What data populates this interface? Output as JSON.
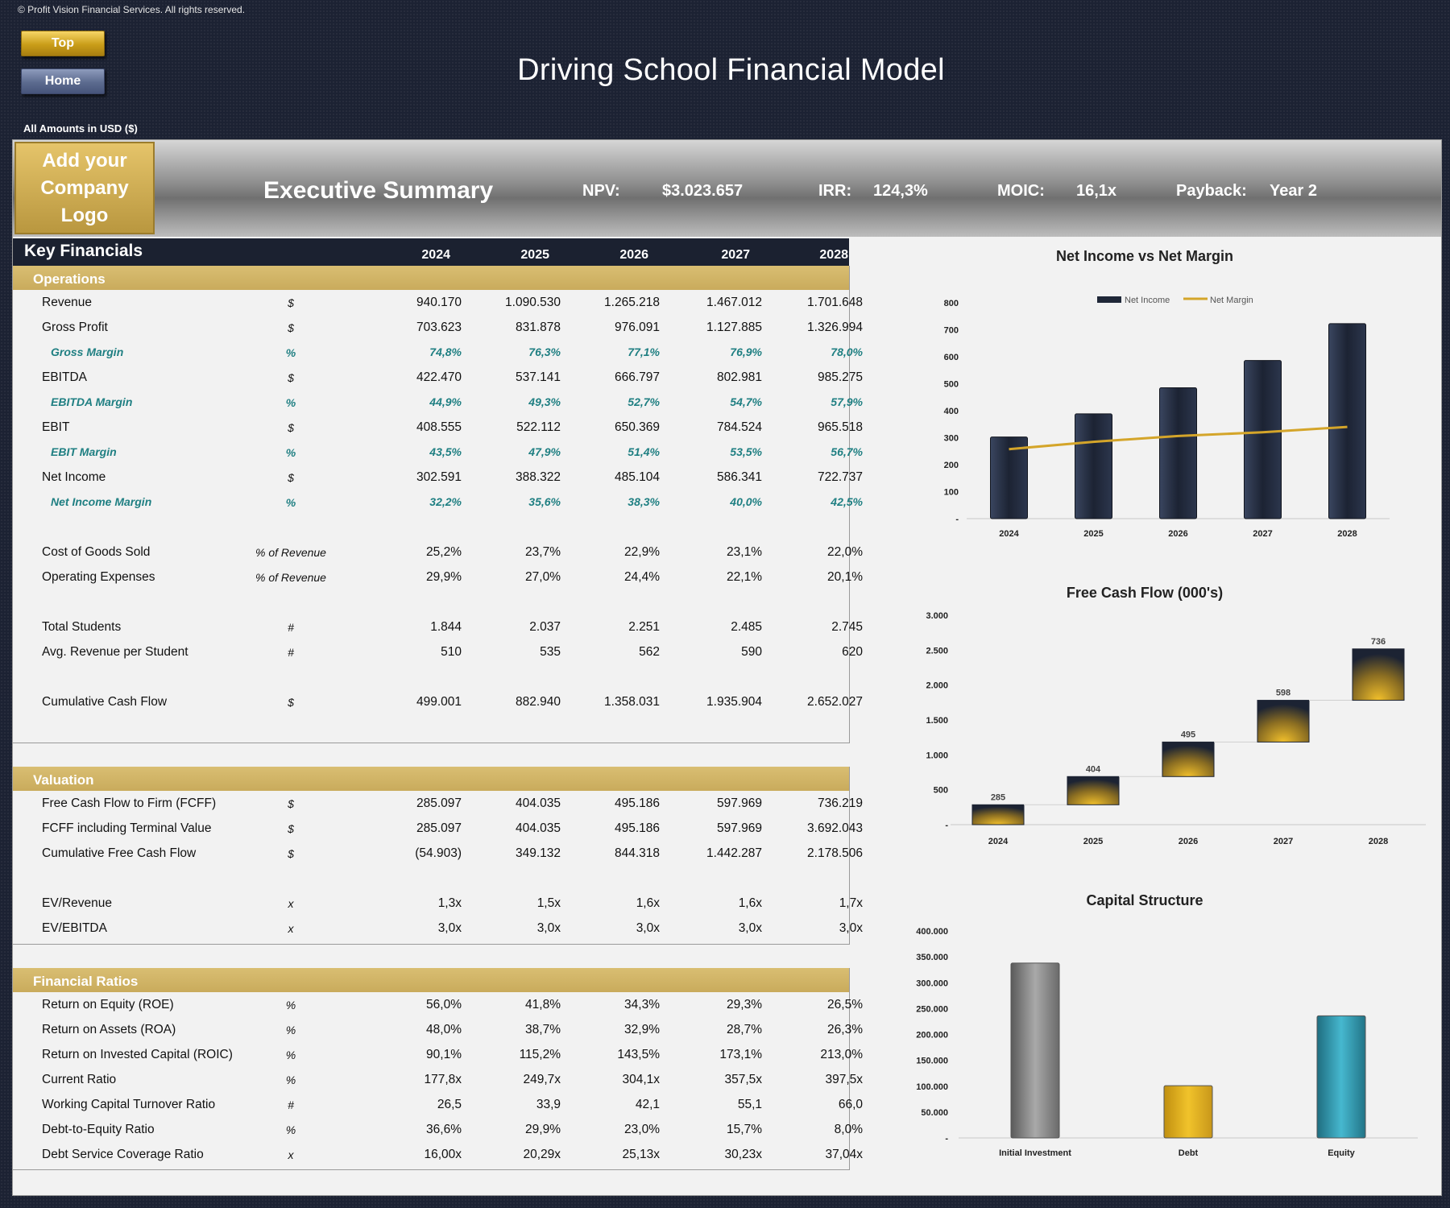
{
  "header": {
    "copyright": "© Profit Vision Financial Services. All rights reserved.",
    "btn_top": "Top",
    "btn_home": "Home",
    "title": "Driving School Financial Model",
    "amounts": "All Amounts in  USD ($)"
  },
  "banner": {
    "logo_line1": "Add your",
    "logo_line2": "Company Logo",
    "title": "Executive Summary",
    "npv_label": "NPV:",
    "npv_value": "$3.023.657",
    "irr_label": "IRR:",
    "irr_value": "124,3%",
    "moic_label": "MOIC:",
    "moic_value": "16,1x",
    "payback_label": "Payback:",
    "payback_value": "Year 2"
  },
  "table": {
    "title": "Key Financials",
    "years": [
      "2024",
      "2025",
      "2026",
      "2027",
      "2028"
    ],
    "sections": {
      "operations": "Operations",
      "valuation": "Valuation",
      "ratios": "Financial Ratios"
    },
    "operations": [
      {
        "label": "Revenue",
        "unit": "$",
        "values": [
          "940.170",
          "1.090.530",
          "1.265.218",
          "1.467.012",
          "1.701.648"
        ]
      },
      {
        "label": "Gross Profit",
        "unit": "$",
        "values": [
          "703.623",
          "831.878",
          "976.091",
          "1.127.885",
          "1.326.994"
        ]
      },
      {
        "label": "Gross Margin",
        "unit": "%",
        "values": [
          "74,8%",
          "76,3%",
          "77,1%",
          "76,9%",
          "78,0%"
        ],
        "sub": true
      },
      {
        "label": "EBITDA",
        "unit": "$",
        "values": [
          "422.470",
          "537.141",
          "666.797",
          "802.981",
          "985.275"
        ]
      },
      {
        "label": "EBITDA Margin",
        "unit": "%",
        "values": [
          "44,9%",
          "49,3%",
          "52,7%",
          "54,7%",
          "57,9%"
        ],
        "sub": true
      },
      {
        "label": "EBIT",
        "unit": "$",
        "values": [
          "408.555",
          "522.112",
          "650.369",
          "784.524",
          "965.518"
        ]
      },
      {
        "label": "EBIT Margin",
        "unit": "%",
        "values": [
          "43,5%",
          "47,9%",
          "51,4%",
          "53,5%",
          "56,7%"
        ],
        "sub": true
      },
      {
        "label": "Net Income",
        "unit": "$",
        "values": [
          "302.591",
          "388.322",
          "485.104",
          "586.341",
          "722.737"
        ]
      },
      {
        "label": "Net Income Margin",
        "unit": "%",
        "values": [
          "32,2%",
          "35,6%",
          "38,3%",
          "40,0%",
          "42,5%"
        ],
        "sub": true
      },
      {
        "label": "Cost of Goods Sold",
        "unit": "% of Revenue",
        "values": [
          "25,2%",
          "23,7%",
          "22,9%",
          "23,1%",
          "22,0%"
        ],
        "gap": true
      },
      {
        "label": "Operating Expenses",
        "unit": "% of Revenue",
        "values": [
          "29,9%",
          "27,0%",
          "24,4%",
          "22,1%",
          "20,1%"
        ]
      },
      {
        "label": "Total Students",
        "unit": "#",
        "values": [
          "1.844",
          "2.037",
          "2.251",
          "2.485",
          "2.745"
        ],
        "gap": true
      },
      {
        "label": "Avg. Revenue per Student",
        "unit": "#",
        "values": [
          "510",
          "535",
          "562",
          "590",
          "620"
        ]
      },
      {
        "label": "Cumulative Cash Flow",
        "unit": "$",
        "values": [
          "499.001",
          "882.940",
          "1.358.031",
          "1.935.904",
          "2.652.027"
        ],
        "gap": true
      }
    ],
    "valuation": [
      {
        "label": "Free Cash Flow to Firm (FCFF)",
        "unit": "$",
        "values": [
          "285.097",
          "404.035",
          "495.186",
          "597.969",
          "736.219"
        ]
      },
      {
        "label": "FCFF including Terminal Value",
        "unit": "$",
        "values": [
          "285.097",
          "404.035",
          "495.186",
          "597.969",
          "3.692.043"
        ]
      },
      {
        "label": "Cumulative Free Cash Flow",
        "unit": "$",
        "values": [
          "(54.903)",
          "349.132",
          "844.318",
          "1.442.287",
          "2.178.506"
        ]
      },
      {
        "label": "EV/Revenue",
        "unit": "x",
        "values": [
          "1,3x",
          "1,5x",
          "1,6x",
          "1,6x",
          "1,7x"
        ],
        "gap": true
      },
      {
        "label": "EV/EBITDA",
        "unit": "x",
        "values": [
          "3,0x",
          "3,0x",
          "3,0x",
          "3,0x",
          "3,0x"
        ]
      }
    ],
    "ratios": [
      {
        "label": "Return on Equity (ROE)",
        "unit": "%",
        "values": [
          "56,0%",
          "41,8%",
          "34,3%",
          "29,3%",
          "26,5%"
        ]
      },
      {
        "label": "Return on Assets (ROA)",
        "unit": "%",
        "values": [
          "48,0%",
          "38,7%",
          "32,9%",
          "28,7%",
          "26,3%"
        ]
      },
      {
        "label": "Return on Invested Capital (ROIC)",
        "unit": "%",
        "values": [
          "90,1%",
          "115,2%",
          "143,5%",
          "173,1%",
          "213,0%"
        ]
      },
      {
        "label": "Current Ratio",
        "unit": "%",
        "values": [
          "177,8x",
          "249,7x",
          "304,1x",
          "357,5x",
          "397,5x"
        ]
      },
      {
        "label": "Working Capital Turnover Ratio",
        "unit": "#",
        "values": [
          "26,5",
          "33,9",
          "42,1",
          "55,1",
          "66,0"
        ]
      },
      {
        "label": "Debt-to-Equity Ratio",
        "unit": "%",
        "values": [
          "36,6%",
          "29,9%",
          "23,0%",
          "15,7%",
          "8,0%"
        ]
      },
      {
        "label": "Debt Service Coverage Ratio",
        "unit": "x",
        "values": [
          "16,00x",
          "20,29x",
          "25,13x",
          "30,23x",
          "37,04x"
        ]
      }
    ]
  },
  "chart_data": [
    {
      "type": "bar",
      "title": "Net Income vs Net Margin",
      "categories": [
        "2024",
        "2025",
        "2026",
        "2027",
        "2028"
      ],
      "series": [
        {
          "name": "Net Income",
          "type": "bar",
          "values": [
            302.6,
            388.3,
            485.1,
            586.3,
            722.7
          ],
          "color": "#1f2738"
        },
        {
          "name": "Net Margin",
          "type": "line",
          "values": [
            32.2,
            35.6,
            38.3,
            40.0,
            42.5
          ],
          "color": "#d4a52a"
        }
      ],
      "ylim": [
        0,
        800
      ],
      "yticks": [
        "-",
        "100",
        "200",
        "300",
        "400",
        "500",
        "600",
        "700",
        "800"
      ],
      "legend": "top"
    },
    {
      "type": "bar",
      "subtype": "waterfall",
      "title": "Free Cash Flow (000's)",
      "categories": [
        "2024",
        "2025",
        "2026",
        "2027",
        "2028"
      ],
      "values": [
        285,
        404,
        495,
        598,
        736
      ],
      "labels": [
        "285",
        "404",
        "495",
        "598",
        "736"
      ],
      "ylim": [
        0,
        3000
      ],
      "yticks": [
        "-",
        "500",
        "1.000",
        "1.500",
        "2.000",
        "2.500",
        "3.000"
      ],
      "color": "#e0ae23"
    },
    {
      "type": "bar",
      "title": "Capital Structure",
      "categories": [
        "Initial Investment",
        "Debt",
        "Equity"
      ],
      "values": [
        338000,
        101000,
        236000
      ],
      "colors": [
        "#808080",
        "#e2b21e",
        "#2b98ad"
      ],
      "ylim": [
        0,
        400000
      ],
      "yticks": [
        "-",
        "50.000",
        "100.000",
        "150.000",
        "200.000",
        "250.000",
        "300.000",
        "350.000",
        "400.000"
      ]
    }
  ]
}
